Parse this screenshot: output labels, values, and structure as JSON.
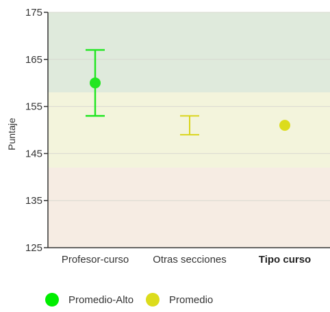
{
  "chart_data": {
    "type": "errorbar",
    "ylabel": "Puntaje",
    "ylim": [
      125,
      175
    ],
    "yticks": [
      125,
      135,
      145,
      155,
      165,
      175
    ],
    "categories": [
      "Profesor-curso",
      "Otras secciones"
    ],
    "axis_title_x": "Tipo curso",
    "bands": [
      {
        "from": 125,
        "to": 142,
        "color": "#f6ece3"
      },
      {
        "from": 142,
        "to": 158,
        "color": "#f3f4dc"
      },
      {
        "from": 158,
        "to": 175,
        "color": "#dfeadc"
      }
    ],
    "points": [
      {
        "category": "Profesor-curso",
        "value": 160,
        "low": 153,
        "high": 167,
        "color": "#22e622",
        "show_point": true
      },
      {
        "category": "Otras secciones",
        "value": 151,
        "low": 149,
        "high": 153,
        "color": "#d9d41a",
        "show_point": false
      },
      {
        "category": "Tipo curso",
        "value": 151,
        "low": null,
        "high": null,
        "color": "#dcdc1c",
        "show_point": true
      }
    ],
    "legend": [
      {
        "label": "Promedio-Alto",
        "color": "#00ee00"
      },
      {
        "label": "Promedio",
        "color": "#dcdc1c"
      }
    ]
  }
}
